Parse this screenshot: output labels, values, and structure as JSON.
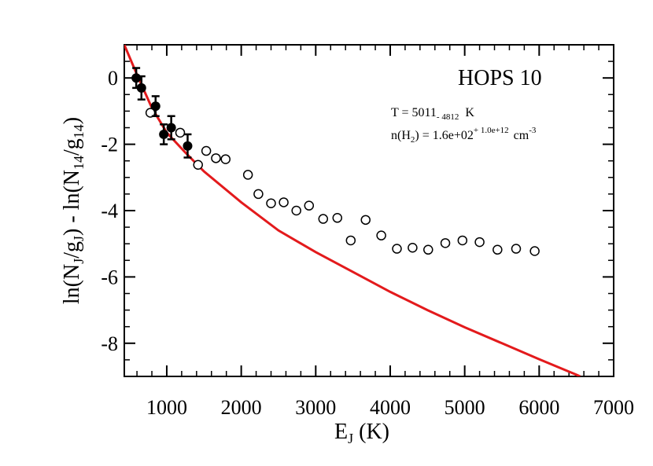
{
  "chart_data": {
    "type": "scatter",
    "title": "HOPS 10",
    "annotations": {
      "temperature": {
        "prefix": "T = 5011",
        "sub": "- 4812",
        "unit": "K"
      },
      "density": {
        "prefix": "n(H",
        "prefix_sub": "2",
        "mid": ") =  1.6e+02",
        "sup": "+ 1.0e+12",
        "unit": "cm",
        "unit_sup": "-3"
      }
    },
    "xlabel": {
      "main": "E",
      "sub": "J",
      "tail": " (K)"
    },
    "ylabel": {
      "p1": "ln(N",
      "s1": "J",
      "p2": "/g",
      "s2": "J",
      "p3": ") - ln(N",
      "s3": "14",
      "p4": "/g",
      "s4": "14",
      "p5": ")"
    },
    "xlim": [
      430,
      7000
    ],
    "ylim": [
      -9,
      1
    ],
    "xticks": [
      1000,
      2000,
      3000,
      4000,
      5000,
      6000,
      7000
    ],
    "yticks": [
      0,
      -2,
      -4,
      -6,
      -8
    ],
    "grid": false,
    "series": [
      {
        "kind": "filled_with_errorbars",
        "color": "#000000",
        "points": [
          {
            "x": 590,
            "y": 0.0,
            "err": 0.3
          },
          {
            "x": 660,
            "y": -0.3,
            "err": 0.35
          },
          {
            "x": 850,
            "y": -0.85,
            "err": 0.3
          },
          {
            "x": 960,
            "y": -1.7,
            "err": 0.3
          },
          {
            "x": 1060,
            "y": -1.5,
            "err": 0.35
          },
          {
            "x": 1280,
            "y": -2.05,
            "err": 0.35
          }
        ]
      },
      {
        "kind": "open_circles",
        "color": "#000000",
        "points": [
          {
            "x": 780,
            "y": -1.05
          },
          {
            "x": 1180,
            "y": -1.65
          },
          {
            "x": 1420,
            "y": -2.62
          },
          {
            "x": 1530,
            "y": -2.2
          },
          {
            "x": 1660,
            "y": -2.42
          },
          {
            "x": 1790,
            "y": -2.45
          },
          {
            "x": 2090,
            "y": -2.92
          },
          {
            "x": 2230,
            "y": -3.5
          },
          {
            "x": 2400,
            "y": -3.78
          },
          {
            "x": 2570,
            "y": -3.75
          },
          {
            "x": 2740,
            "y": -4.0
          },
          {
            "x": 2910,
            "y": -3.85
          },
          {
            "x": 3100,
            "y": -4.25
          },
          {
            "x": 3290,
            "y": -4.22
          },
          {
            "x": 3470,
            "y": -4.9
          },
          {
            "x": 3670,
            "y": -4.28
          },
          {
            "x": 3880,
            "y": -4.75
          },
          {
            "x": 4090,
            "y": -5.15
          },
          {
            "x": 4300,
            "y": -5.12
          },
          {
            "x": 4510,
            "y": -5.18
          },
          {
            "x": 4740,
            "y": -4.98
          },
          {
            "x": 4970,
            "y": -4.9
          },
          {
            "x": 5200,
            "y": -4.95
          },
          {
            "x": 5440,
            "y": -5.18
          },
          {
            "x": 5690,
            "y": -5.15
          },
          {
            "x": 5940,
            "y": -5.22
          }
        ]
      },
      {
        "kind": "line",
        "color": "#e31a1c",
        "points": [
          {
            "x": 430,
            "y": 1.0
          },
          {
            "x": 600,
            "y": 0.1
          },
          {
            "x": 800,
            "y": -0.9
          },
          {
            "x": 1000,
            "y": -1.65
          },
          {
            "x": 1250,
            "y": -2.25
          },
          {
            "x": 1500,
            "y": -2.82
          },
          {
            "x": 2000,
            "y": -3.75
          },
          {
            "x": 2500,
            "y": -4.6
          },
          {
            "x": 3000,
            "y": -5.25
          },
          {
            "x": 3500,
            "y": -5.85
          },
          {
            "x": 4000,
            "y": -6.45
          },
          {
            "x": 4500,
            "y": -7.0
          },
          {
            "x": 5000,
            "y": -7.52
          },
          {
            "x": 5500,
            "y": -8.0
          },
          {
            "x": 6000,
            "y": -8.48
          },
          {
            "x": 6500,
            "y": -8.95
          },
          {
            "x": 6550,
            "y": -9.0
          }
        ]
      }
    ]
  }
}
